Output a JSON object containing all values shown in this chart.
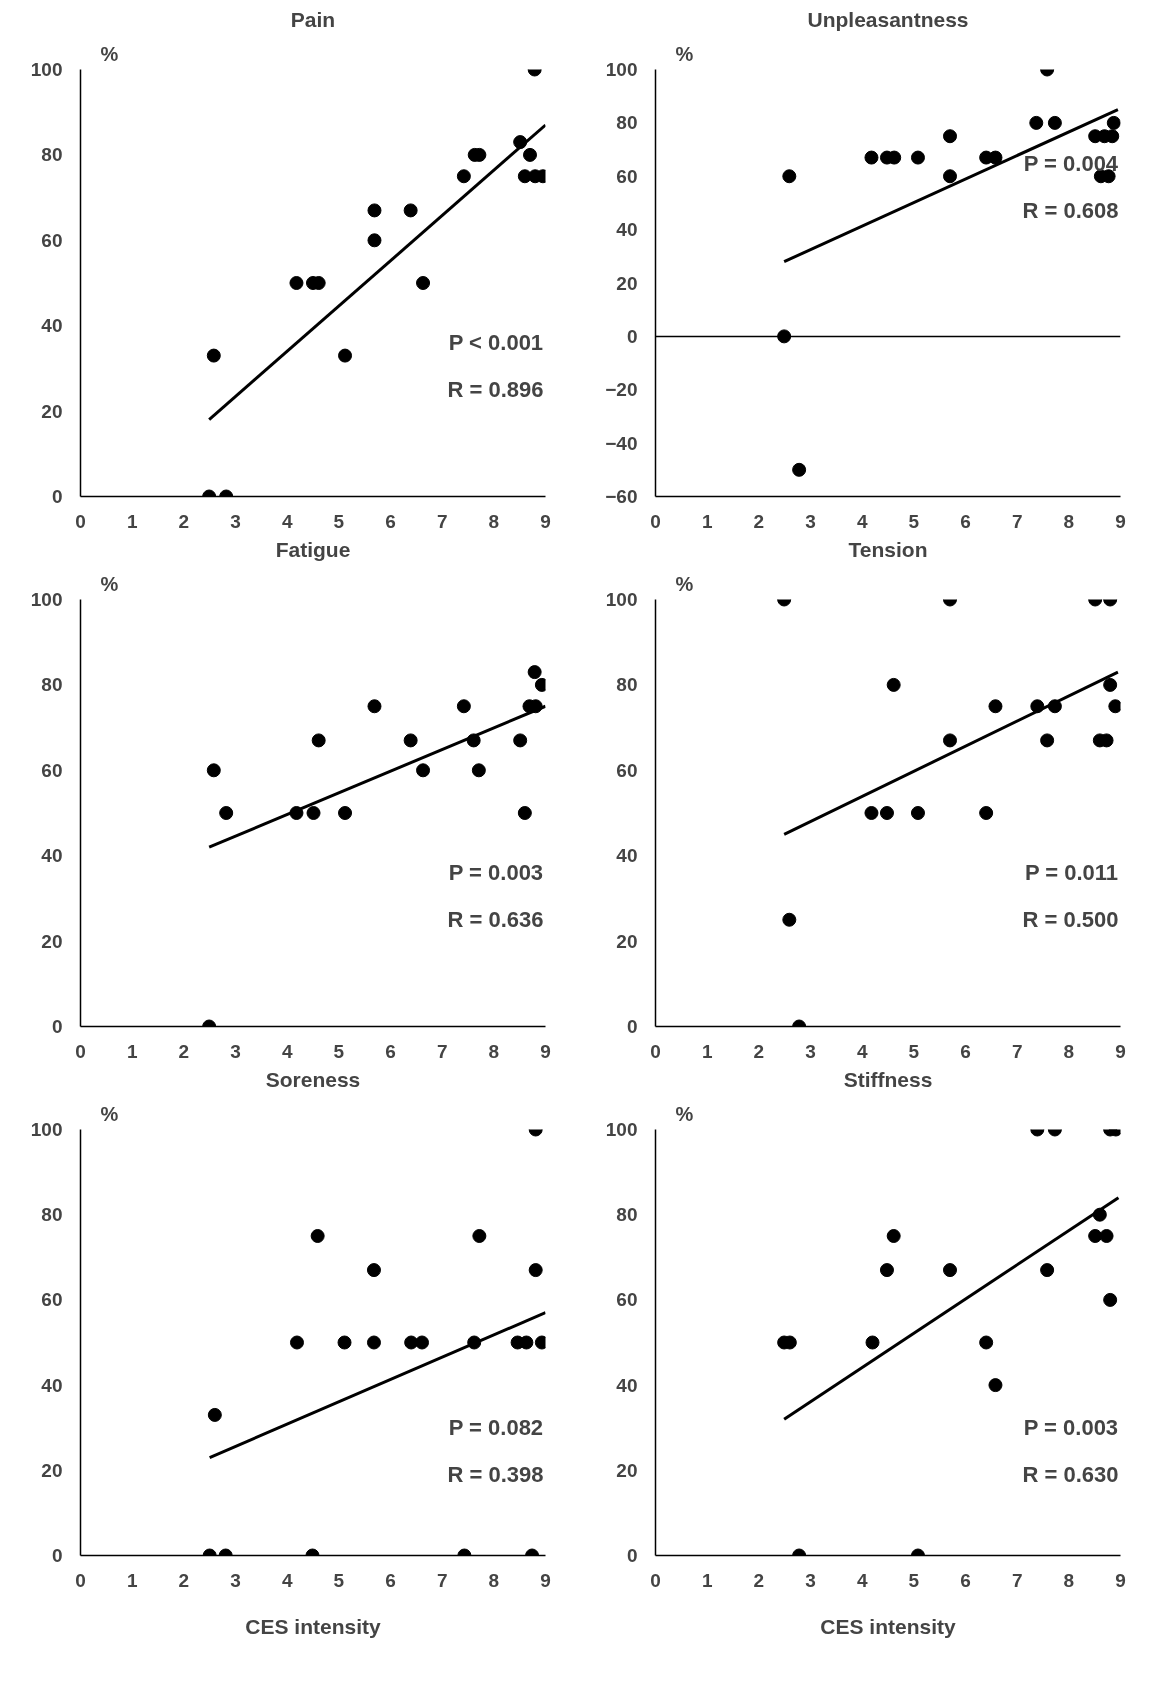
{
  "chart_data": [
    {
      "type": "scatter",
      "title": "Pain",
      "ylabel": "%",
      "xlim": [
        0,
        9
      ],
      "xticks": [
        0,
        1,
        2,
        3,
        4,
        5,
        6,
        7,
        8,
        9
      ],
      "ylim": [
        0,
        100
      ],
      "yticks": [
        0,
        20,
        40,
        60,
        80,
        100
      ],
      "grid": false,
      "marker": "circle",
      "annotations": [
        "P < 0.001",
        "R = 0.896"
      ],
      "series": [
        {
          "color": "#000000",
          "x": [
            2.49,
            2.82,
            2.58,
            4.18,
            4.5,
            4.61,
            5.69,
            5.69,
            5.12,
            6.39,
            6.63,
            7.42,
            7.63,
            7.72,
            8.51,
            8.7,
            8.6,
            8.8,
            8.95,
            8.79
          ],
          "values": [
            0,
            0,
            33,
            50,
            50,
            50,
            67,
            60,
            33,
            67,
            50,
            75,
            80,
            80,
            83,
            80,
            75,
            75,
            75,
            100
          ]
        },
        {
          "type": "line",
          "marker": "none",
          "color": "#000000",
          "line_style": "solid",
          "x": [
            2.49,
            9
          ],
          "values": [
            18,
            87
          ]
        }
      ]
    },
    {
      "type": "scatter",
      "title": "Unpleasantness",
      "ylabel": "%",
      "xlim": [
        0,
        9
      ],
      "xticks": [
        0,
        1,
        2,
        3,
        4,
        5,
        6,
        7,
        8,
        9
      ],
      "ylim": [
        -60,
        100
      ],
      "yticks": [
        -60,
        -40,
        -20,
        0,
        20,
        40,
        60,
        80,
        100
      ],
      "ref_lines": [
        {
          "axis": "y",
          "value": 0,
          "color": "#000000"
        }
      ],
      "grid": false,
      "marker": "circle",
      "annotations": [
        "P = 0.004",
        "R = 0.608"
      ],
      "series": [
        {
          "color": "#000000",
          "x": [
            2.49,
            2.59,
            2.78,
            4.18,
            4.48,
            4.62,
            5.08,
            5.7,
            5.7,
            6.4,
            6.58,
            7.37,
            7.58,
            7.73,
            8.51,
            8.62,
            8.77,
            8.69,
            8.84,
            8.87
          ],
          "values": [
            0,
            60,
            -50,
            67,
            67,
            67,
            67,
            75,
            60,
            67,
            67,
            80,
            100,
            80,
            75,
            60,
            60,
            75,
            75,
            80
          ]
        },
        {
          "type": "line",
          "marker": "none",
          "color": "#000000",
          "line_style": "solid",
          "x": [
            2.49,
            8.95
          ],
          "values": [
            28,
            85
          ]
        }
      ]
    },
    {
      "type": "scatter",
      "title": "Fatigue",
      "ylabel": "%",
      "xlim": [
        0,
        9
      ],
      "xticks": [
        0,
        1,
        2,
        3,
        4,
        5,
        6,
        7,
        8,
        9
      ],
      "ylim": [
        0,
        100
      ],
      "yticks": [
        0,
        20,
        40,
        60,
        80,
        100
      ],
      "grid": false,
      "marker": "circle",
      "annotations": [
        "P = 0.003",
        "R = 0.636"
      ],
      "series": [
        {
          "color": "#000000",
          "x": [
            2.49,
            2.58,
            2.82,
            4.18,
            4.51,
            4.61,
            5.12,
            5.69,
            6.39,
            6.63,
            7.42,
            7.61,
            7.71,
            8.51,
            8.6,
            8.69,
            8.81,
            8.79,
            8.93
          ],
          "values": [
            0,
            60,
            50,
            50,
            50,
            67,
            50,
            75,
            67,
            60,
            75,
            67,
            60,
            67,
            50,
            75,
            75,
            83,
            80
          ]
        },
        {
          "type": "line",
          "marker": "none",
          "color": "#000000",
          "line_style": "solid",
          "x": [
            2.49,
            9
          ],
          "values": [
            42,
            75
          ]
        }
      ]
    },
    {
      "type": "scatter",
      "title": "Tension",
      "ylabel": "%",
      "xlim": [
        0,
        9
      ],
      "xticks": [
        0,
        1,
        2,
        3,
        4,
        5,
        6,
        7,
        8,
        9
      ],
      "ylim": [
        0,
        100
      ],
      "yticks": [
        0,
        20,
        40,
        60,
        80,
        100
      ],
      "grid": false,
      "marker": "circle",
      "annotations": [
        "P = 0.011",
        "R = 0.500"
      ],
      "series": [
        {
          "color": "#000000",
          "x": [
            2.49,
            2.59,
            2.78,
            4.18,
            4.48,
            4.61,
            5.08,
            5.7,
            5.7,
            6.4,
            6.58,
            7.39,
            7.58,
            7.73,
            8.51,
            8.8,
            8.6,
            8.73,
            8.8,
            8.9
          ],
          "values": [
            100,
            25,
            0,
            50,
            50,
            80,
            50,
            100,
            67,
            50,
            75,
            75,
            67,
            75,
            100,
            100,
            67,
            67,
            80,
            75
          ]
        },
        {
          "type": "line",
          "marker": "none",
          "color": "#000000",
          "line_style": "solid",
          "x": [
            2.49,
            8.95
          ],
          "values": [
            45,
            83
          ]
        }
      ]
    },
    {
      "type": "scatter",
      "title": "Soreness",
      "ylabel": "%",
      "xlabel": "CES intensity",
      "xlim": [
        0,
        9
      ],
      "xticks": [
        0,
        1,
        2,
        3,
        4,
        5,
        6,
        7,
        8,
        9
      ],
      "ylim": [
        0,
        100
      ],
      "yticks": [
        0,
        20,
        40,
        60,
        80,
        100
      ],
      "grid": false,
      "marker": "circle",
      "annotations": [
        "P = 0.082",
        "R = 0.398"
      ],
      "series": [
        {
          "color": "#000000",
          "x": [
            2.5,
            2.81,
            2.6,
            4.19,
            4.59,
            4.49,
            5.11,
            5.68,
            5.68,
            6.4,
            6.61,
            7.43,
            7.62,
            7.72,
            8.46,
            8.63,
            8.74,
            8.81,
            8.81,
            8.93
          ],
          "values": [
            0,
            0,
            33,
            50,
            75,
            0,
            50,
            67,
            50,
            50,
            50,
            0,
            50,
            75,
            50,
            50,
            0,
            67,
            100,
            50
          ]
        },
        {
          "type": "line",
          "marker": "none",
          "color": "#000000",
          "line_style": "solid",
          "x": [
            2.5,
            9
          ],
          "values": [
            23,
            57
          ]
        }
      ]
    },
    {
      "type": "scatter",
      "title": "Stiffness",
      "ylabel": "%",
      "xlabel": "CES intensity",
      "xlim": [
        0,
        9
      ],
      "xticks": [
        0,
        1,
        2,
        3,
        4,
        5,
        6,
        7,
        8,
        9
      ],
      "ylim": [
        0,
        100
      ],
      "yticks": [
        0,
        20,
        40,
        60,
        80,
        100
      ],
      "grid": false,
      "marker": "circle",
      "annotations": [
        "P = 0.003",
        "R = 0.630"
      ],
      "series": [
        {
          "color": "#000000",
          "x": [
            2.49,
            2.6,
            2.78,
            4.2,
            4.48,
            4.61,
            5.08,
            5.7,
            6.4,
            6.58,
            7.39,
            7.73,
            7.58,
            8.6,
            8.51,
            8.73,
            8.8,
            8.8,
            8.91
          ],
          "values": [
            50,
            50,
            0,
            50,
            67,
            75,
            0,
            67,
            50,
            40,
            100,
            100,
            67,
            80,
            75,
            75,
            60,
            100,
            100
          ]
        },
        {
          "type": "line",
          "marker": "none",
          "color": "#000000",
          "line_style": "solid",
          "x": [
            2.49,
            8.96
          ],
          "values": [
            32,
            84
          ]
        }
      ]
    }
  ]
}
